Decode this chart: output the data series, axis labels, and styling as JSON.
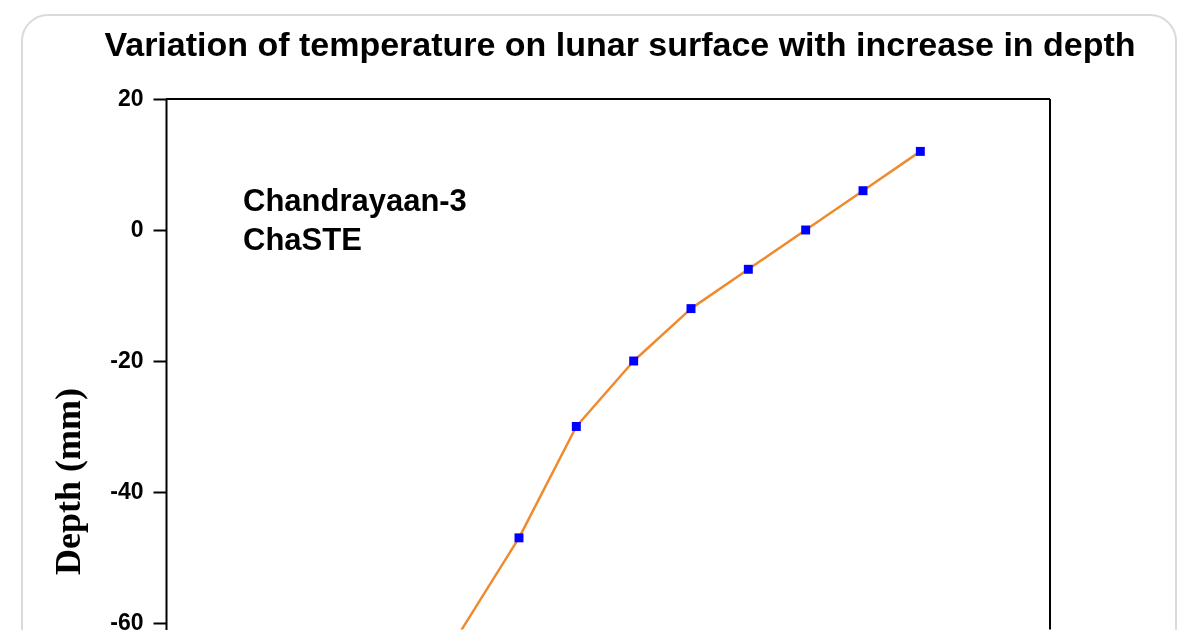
{
  "chart_data": {
    "type": "line",
    "title": "Variation of temperature on lunar surface with increase in depth",
    "ylabel": "Depth (mm)",
    "annotations": [
      "Chandrayaan-3",
      "ChaSTE"
    ],
    "categories": [
      null,
      null,
      null,
      null,
      null,
      null,
      null,
      null,
      null
    ],
    "ylim": [
      -61,
      20
    ],
    "yticks": [
      20,
      0,
      -20,
      -40,
      -60
    ],
    "tick_labels": "y",
    "grid": false,
    "line_style": "solid",
    "series": [
      {
        "color": "#ef8a2e",
        "marker": "none",
        "values": [
          -61,
          -47,
          -30,
          -20,
          -12,
          -6,
          0,
          6,
          12
        ]
      },
      {
        "type": "scatter",
        "color": "#0000ff",
        "marker": "square",
        "values": [
          null,
          -47,
          -30,
          -20,
          -12,
          -6,
          0,
          6,
          12
        ]
      }
    ]
  }
}
